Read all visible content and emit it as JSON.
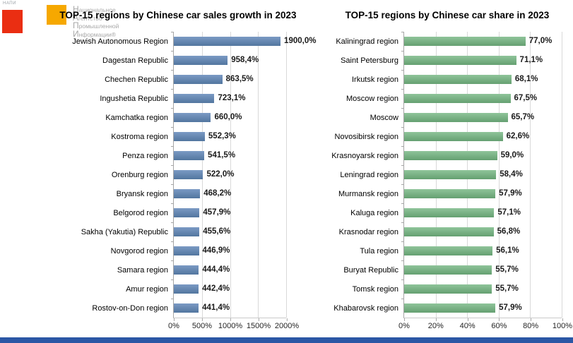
{
  "logo": {
    "acronym": "НАПИ",
    "lines": [
      "Национальное",
      "Агентство",
      "Промышленной",
      "Информации®"
    ]
  },
  "colors": {
    "logo_red": "#ea2e12",
    "logo_orange": "#f6a800",
    "logo_text_grey": "#a8a8a8",
    "footer_stripe": "#2b57a5",
    "left_bar_top": "#7b9ac4",
    "left_bar_bottom": "#52769f",
    "right_bar_top": "#8fc49a",
    "right_bar_bottom": "#65a071"
  },
  "chart_data": [
    {
      "type": "bar",
      "orientation": "horizontal",
      "title": "TOP-15 regions by Chinese car sales growth in 2023",
      "categories": [
        "Jewish Autonomous Region",
        "Dagestan Republic",
        "Chechen Republic",
        "Ingushetia Republic",
        "Kamchatka region",
        "Kostroma region",
        "Penza region",
        "Orenburg region",
        "Bryansk region",
        "Belgorod region",
        "Sakha (Yakutia) Republic",
        "Novgorod region",
        "Samara region",
        "Amur region",
        "Rostov-on-Don region"
      ],
      "values": [
        1900.0,
        958.4,
        863.5,
        723.1,
        660.0,
        552.3,
        541.5,
        522.0,
        468.2,
        457.9,
        455.6,
        446.9,
        444.4,
        442.4,
        441.4
      ],
      "value_labels": [
        "1900,0%",
        "958,4%",
        "863,5%",
        "723,1%",
        "660,0%",
        "552,3%",
        "541,5%",
        "522,0%",
        "468,2%",
        "457,9%",
        "455,6%",
        "446,9%",
        "444,4%",
        "442,4%",
        "441,4%"
      ],
      "xlim": [
        0,
        2000
      ],
      "x_ticks": [
        {
          "label": "0%",
          "value": 0
        },
        {
          "label": "500%",
          "value": 500
        },
        {
          "label": "1000%",
          "value": 1000
        },
        {
          "label": "1500%",
          "value": 1500
        },
        {
          "label": "2000%",
          "value": 2000
        }
      ],
      "grid": true,
      "bar_color_top": "#7b9ac4",
      "bar_color_bottom": "#52769f"
    },
    {
      "type": "bar",
      "orientation": "horizontal",
      "title": "TOP-15 regions by Chinese car share in 2023",
      "categories": [
        "Kaliningrad region",
        "Saint Petersburg",
        "Irkutsk region",
        "Moscow region",
        "Moscow",
        "Novosibirsk region",
        "Krasnoyarsk region",
        "Leningrad region",
        "Murmansk region",
        "Kaluga region",
        "Krasnodar region",
        "Tula region",
        "Buryat Republic",
        "Tomsk region",
        "Khabarovsk region"
      ],
      "values": [
        77.0,
        71.1,
        68.1,
        67.5,
        65.7,
        62.6,
        59.0,
        58.4,
        57.9,
        57.1,
        56.8,
        56.1,
        55.7,
        55.7,
        57.9
      ],
      "value_labels": [
        "77,0%",
        "71,1%",
        "68,1%",
        "67,5%",
        "65,7%",
        "62,6%",
        "59,0%",
        "58,4%",
        "57,9%",
        "57,1%",
        "56,8%",
        "56,1%",
        "55,7%",
        "55,7%",
        "57,9%"
      ],
      "xlim": [
        0,
        100
      ],
      "x_ticks": [
        {
          "label": "0%",
          "value": 0
        },
        {
          "label": "20%",
          "value": 20
        },
        {
          "label": "40%",
          "value": 40
        },
        {
          "label": "60%",
          "value": 60
        },
        {
          "label": "80%",
          "value": 80
        },
        {
          "label": "100%",
          "value": 100
        }
      ],
      "grid": true,
      "bar_color_top": "#8fc49a",
      "bar_color_bottom": "#65a071"
    }
  ]
}
